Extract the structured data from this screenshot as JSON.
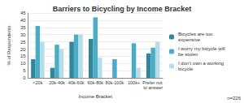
{
  "chart_data": {
    "type": "bar",
    "title": "Barriers to Bicycling by Income Bracket",
    "x_label": "Income Bracket",
    "y_label": "% of Respondents",
    "annotation": "n=226",
    "categories": [
      "<20k",
      "20k-40k",
      "40k-60k",
      "60k-80k",
      "80k-100k",
      "100k+",
      "Prefer not to answer"
    ],
    "series": [
      {
        "name": "Bicycles are too expensive",
        "color": "#31859c",
        "values": [
          13,
          7,
          25,
          27,
          0,
          0,
          17
        ]
      },
      {
        "name": "I worry my bicycle will be stolen",
        "color": "#4bacc6",
        "values": [
          36,
          23,
          30,
          42,
          13,
          24,
          21
        ]
      },
      {
        "name": "I don't own a working bicycle",
        "color": "#b7dee8",
        "values": [
          25,
          20,
          30,
          14,
          0,
          7,
          25
        ]
      }
    ],
    "ylim": [
      0,
      45
    ],
    "yticks": [
      0,
      5,
      10,
      15,
      20,
      25,
      30,
      35,
      40,
      45
    ],
    "grid": true,
    "legend": "right"
  }
}
